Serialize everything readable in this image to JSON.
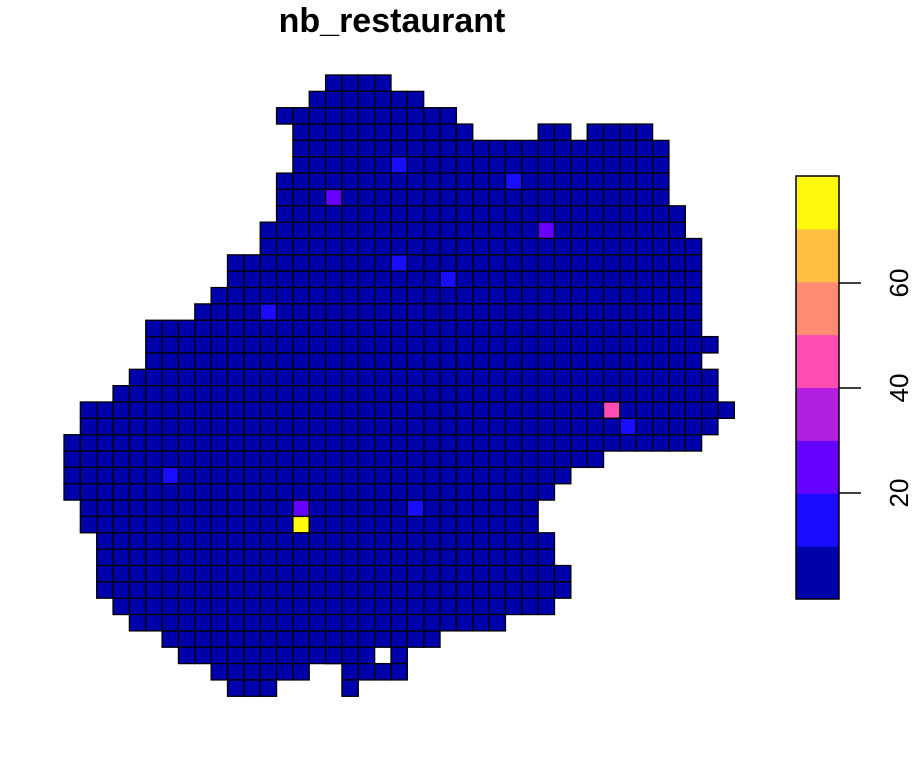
{
  "title": "nb_restaurant",
  "legend": {
    "ticks": [
      "20",
      "40",
      "60"
    ],
    "colors": [
      "#0000AA",
      "#1A0DFF",
      "#6600FF",
      "#B21FE0",
      "#FF4DB3",
      "#FF8C73",
      "#FFBF40",
      "#FFF70D"
    ]
  },
  "map": {
    "cell_stroke": "#000000",
    "base_color": "#0000AA",
    "rows": [
      "................",
      "................",
      "................",
      "................",
      "................",
      "................"
    ]
  }
}
